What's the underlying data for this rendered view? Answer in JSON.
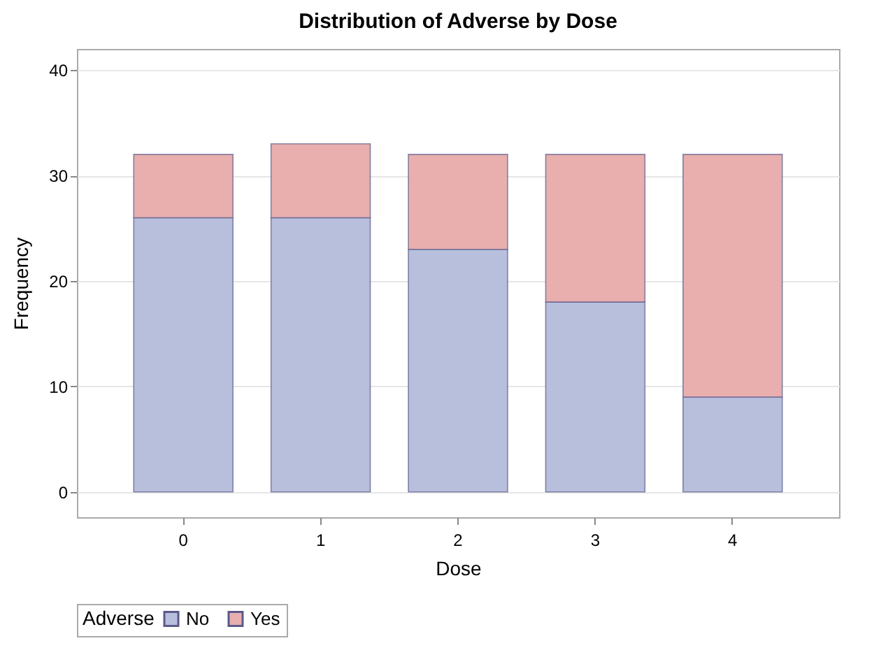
{
  "chart_data": {
    "type": "bar",
    "title": "Distribution of Adverse by Dose",
    "xlabel": "Dose",
    "ylabel": "Frequency",
    "legend_title": "Adverse",
    "categories": [
      "0",
      "1",
      "2",
      "3",
      "4"
    ],
    "stacked": true,
    "series": [
      {
        "name": "No",
        "color": "#b7bfdc",
        "values": [
          26,
          26,
          23,
          18,
          9
        ]
      },
      {
        "name": "Yes",
        "color": "#e8afae",
        "values": [
          6,
          7,
          9,
          14,
          23
        ]
      }
    ],
    "ylim": [
      -2.4,
      42
    ],
    "yticks": [
      0,
      10,
      20,
      30,
      40
    ],
    "grid": "y",
    "legend": "bottom"
  }
}
